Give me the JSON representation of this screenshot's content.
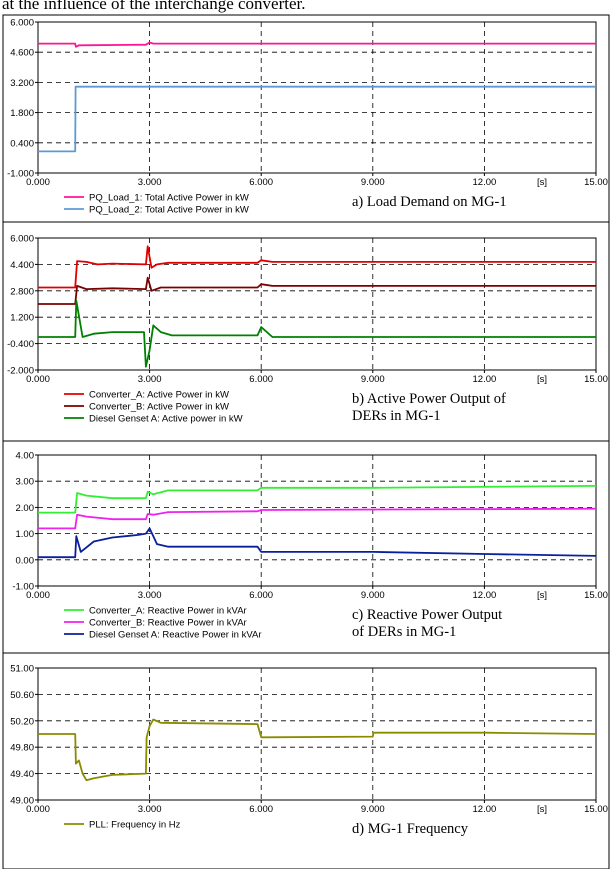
{
  "header_text": "at the influence of the interchange converter.",
  "x_unit": "[s]",
  "chart_data": [
    {
      "type": "line",
      "caption": [
        "a) Load Demand on MG-1"
      ],
      "x_ticks": [
        "0.000",
        "3.000",
        "6.000",
        "9.000",
        "12.00",
        "15.00"
      ],
      "y_ticks": [
        "6.000",
        "4.600",
        "3.200",
        "1.800",
        "0.400",
        "-1.000"
      ],
      "xlim": [
        0,
        15
      ],
      "ylim": [
        -1.0,
        6.0
      ],
      "grid": true,
      "legend_position": "bottom-left",
      "series": [
        {
          "name": "PQ_Load_1: Total Active Power in kW",
          "color": "#ff1493",
          "x": [
            0,
            1.0,
            1.02,
            1.1,
            2.9,
            3.0,
            3.1,
            15
          ],
          "y": [
            5.0,
            5.0,
            4.85,
            4.92,
            4.95,
            5.05,
            5.0,
            5.0
          ]
        },
        {
          "name": "PQ_Load_2: Total Active Power in kW",
          "color": "#5b9bd5",
          "x": [
            0,
            1.0,
            1.01,
            15
          ],
          "y": [
            0.0,
            0.0,
            3.0,
            3.0
          ]
        }
      ]
    },
    {
      "type": "line",
      "caption": [
        "b) Active Power Output of",
        "DERs in MG-1"
      ],
      "x_ticks": [
        "0.000",
        "3.000",
        "6.000",
        "9.000",
        "12.00",
        "15.00"
      ],
      "y_ticks": [
        "6.000",
        "4.400",
        "2.800",
        "1.200",
        "-0.400",
        "-2.000"
      ],
      "xlim": [
        0,
        15
      ],
      "ylim": [
        -2.0,
        6.0
      ],
      "grid": true,
      "legend_position": "bottom-left",
      "series": [
        {
          "name": "Converter_A: Active Power in kW",
          "color": "#e00000",
          "x": [
            0,
            1.0,
            1.05,
            1.3,
            1.6,
            2.0,
            2.9,
            2.95,
            3.05,
            3.2,
            3.5,
            5.9,
            6.0,
            6.3,
            15
          ],
          "y": [
            3.0,
            3.0,
            4.6,
            4.55,
            4.4,
            4.45,
            4.4,
            5.5,
            4.2,
            4.4,
            4.5,
            4.5,
            4.65,
            4.55,
            4.55
          ]
        },
        {
          "name": "Converter_B: Active Power in kW",
          "color": "#7b0000",
          "x": [
            0,
            1.0,
            1.05,
            1.3,
            2.0,
            2.9,
            2.95,
            3.05,
            3.3,
            5.9,
            6.0,
            6.3,
            15
          ],
          "y": [
            2.0,
            2.0,
            3.1,
            2.9,
            2.95,
            2.9,
            3.6,
            2.8,
            3.0,
            3.0,
            3.2,
            3.1,
            3.1
          ]
        },
        {
          "name": "Diesel Genset A: Active power in kW",
          "color": "#008000",
          "x": [
            0,
            1.0,
            1.03,
            1.2,
            1.5,
            2.0,
            2.85,
            2.9,
            3.0,
            3.1,
            3.3,
            3.6,
            5.9,
            6.0,
            6.3,
            15
          ],
          "y": [
            0.0,
            0.0,
            2.2,
            0.0,
            0.2,
            0.3,
            0.3,
            -1.8,
            -0.8,
            0.7,
            0.3,
            0.1,
            0.1,
            0.6,
            0.0,
            0.0
          ]
        }
      ]
    },
    {
      "type": "line",
      "caption": [
        "c) Reactive Power Output",
        "of DERs in MG-1"
      ],
      "x_ticks": [
        "0.000",
        "3.000",
        "6.000",
        "9.000",
        "12.00",
        "15.00"
      ],
      "y_ticks": [
        "4.00",
        "3.00",
        "2.00",
        "1.00",
        "0.00",
        "-1.00"
      ],
      "xlim": [
        0,
        15
      ],
      "ylim": [
        -1.0,
        4.0
      ],
      "grid": true,
      "legend_position": "bottom-left",
      "series": [
        {
          "name": "Converter_A: Reactive Power in kVAr",
          "color": "#33ee33",
          "x": [
            0,
            1.0,
            1.05,
            1.3,
            2.0,
            2.9,
            2.95,
            3.1,
            3.5,
            5.9,
            6.0,
            9.0,
            15
          ],
          "y": [
            1.8,
            1.8,
            2.55,
            2.45,
            2.35,
            2.35,
            2.6,
            2.5,
            2.65,
            2.65,
            2.75,
            2.75,
            2.82
          ]
        },
        {
          "name": "Converter_B: Reactive Power in kVAr",
          "color": "#ee22ee",
          "x": [
            0,
            1.0,
            1.05,
            1.3,
            2.0,
            2.9,
            2.95,
            3.1,
            3.5,
            5.9,
            6.0,
            15
          ],
          "y": [
            1.2,
            1.2,
            1.72,
            1.65,
            1.55,
            1.55,
            1.75,
            1.72,
            1.82,
            1.85,
            1.9,
            1.95
          ]
        },
        {
          "name": "Diesel Genset A: Reactive Power in kVAr",
          "color": "#0a1f9a",
          "x": [
            0,
            1.0,
            1.03,
            1.15,
            1.5,
            2.0,
            2.7,
            2.9,
            3.0,
            3.2,
            3.5,
            5.9,
            6.0,
            9.0,
            12.0,
            15
          ],
          "y": [
            0.1,
            0.1,
            0.9,
            0.3,
            0.7,
            0.85,
            0.95,
            1.0,
            1.2,
            0.6,
            0.5,
            0.5,
            0.3,
            0.3,
            0.22,
            0.15
          ]
        }
      ]
    },
    {
      "type": "line",
      "caption": [
        "d) MG-1 Frequency"
      ],
      "x_ticks": [
        "0.000",
        "3.000",
        "6.000",
        "9.000",
        "12.00",
        "15.00"
      ],
      "y_ticks": [
        "51.00",
        "50.60",
        "50.20",
        "49.80",
        "49.40",
        "49.00"
      ],
      "xlim": [
        0,
        15
      ],
      "ylim": [
        49.0,
        51.0
      ],
      "grid": true,
      "legend_position": "bottom-left",
      "series": [
        {
          "name": "PLL: Frequency in Hz",
          "color": "#8b8b00",
          "x": [
            0,
            1.0,
            1.02,
            1.1,
            1.2,
            1.3,
            1.5,
            2.0,
            2.9,
            2.92,
            3.0,
            3.1,
            3.3,
            5.9,
            6.0,
            6.1,
            9.0,
            9.02,
            12.0,
            15.0
          ],
          "y": [
            50.0,
            50.0,
            49.55,
            49.6,
            49.4,
            49.3,
            49.33,
            49.38,
            49.4,
            49.95,
            50.12,
            50.22,
            50.17,
            50.15,
            49.95,
            49.95,
            49.96,
            50.02,
            50.02,
            50.0
          ]
        }
      ]
    }
  ]
}
